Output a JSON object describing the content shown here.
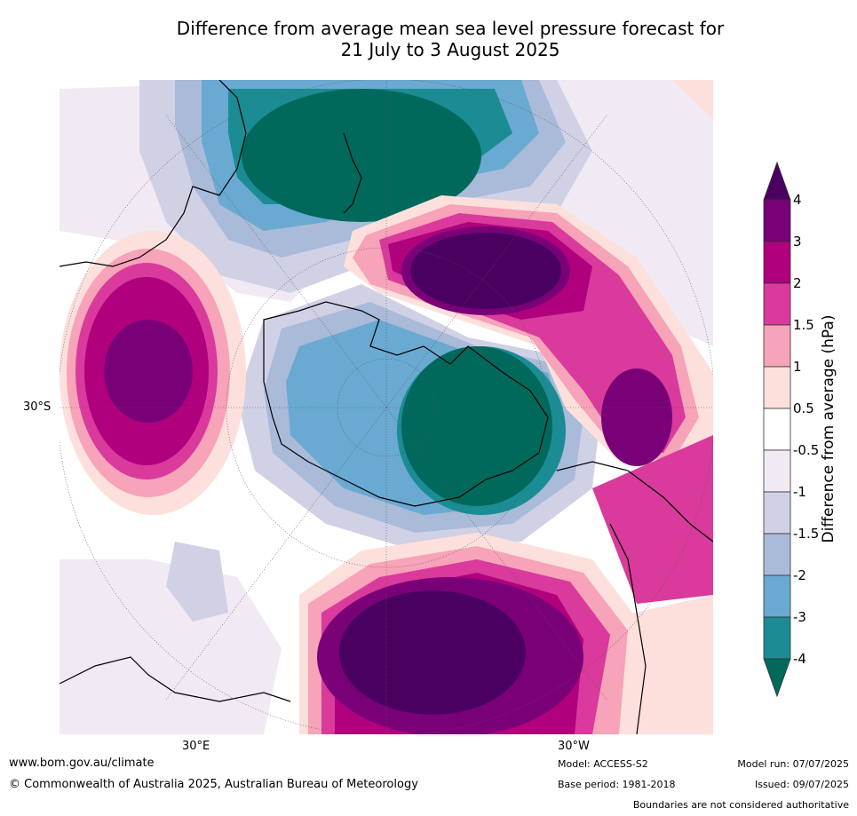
{
  "title": "Difference from average mean sea level pressure forecast for\n21 July to 3 August 2025",
  "map": {
    "labels": {
      "lat_30s": "30°S",
      "lon_30e": "30°E",
      "lon_30w": "30°W"
    }
  },
  "colorbar": {
    "title": "Difference from average (hPa)",
    "ticks": [
      "4",
      "3",
      "2",
      "1.5",
      "1",
      "0.5",
      "-0.5",
      "-1",
      "-1.5",
      "-2",
      "-3",
      "-4"
    ],
    "colors": [
      "#4a0061",
      "#7a0078",
      "#b0007e",
      "#d93a9c",
      "#f7a3b9",
      "#fde0dc",
      "#ffffff",
      "#f1eaf4",
      "#d1d1e6",
      "#a9bbd9",
      "#6aa9d1",
      "#1c8c94",
      "#00695c"
    ]
  },
  "footer": {
    "url": "www.bom.gov.au/climate",
    "copyright": "© Commonwealth of Australia 2025, Australian Bureau of Meteorology",
    "model": "Model: ACCESS-S2",
    "base_period": "Base period: 1981-2018",
    "model_run": "Model run: 07/07/2025",
    "issued": "Issued: 09/07/2025",
    "boundaries": "Boundaries are not considered authoritative"
  }
}
